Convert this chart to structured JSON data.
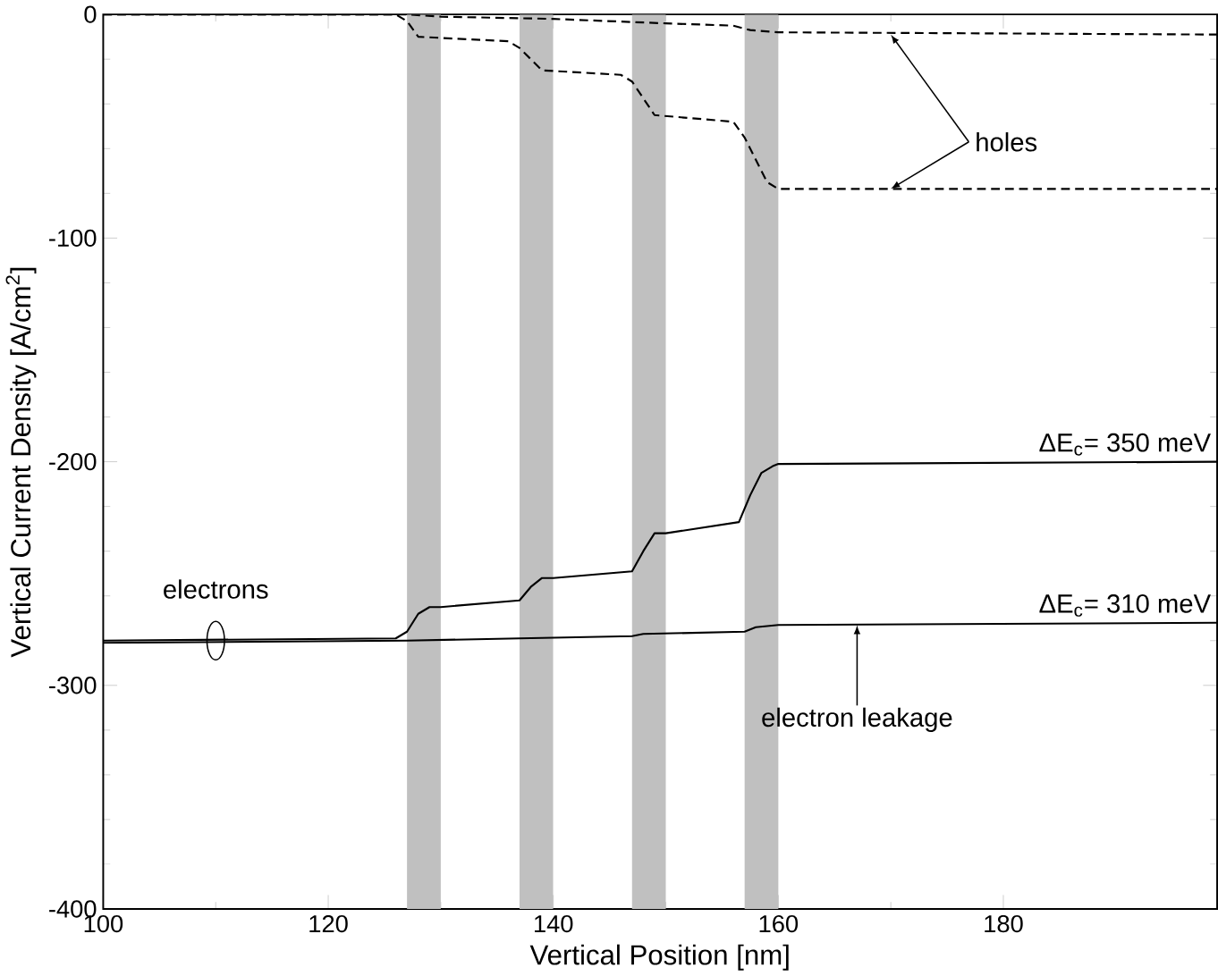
{
  "chart_data": {
    "type": "line",
    "xlabel": "Vertical Position [nm]",
    "ylabel": "Vertical Current Density [A/cm$^{2}$]",
    "xlim": [
      100,
      199
    ],
    "ylim": [
      -400,
      0
    ],
    "xticks": [
      100,
      120,
      140,
      160,
      180
    ],
    "yticks": [
      -400,
      -300,
      -200,
      -100,
      0
    ],
    "grid": false,
    "marker": "none",
    "bands": [
      {
        "axis": "x",
        "from": 127,
        "to": 130,
        "color": "#c0c0c0"
      },
      {
        "axis": "x",
        "from": 137,
        "to": 140,
        "color": "#c0c0c0"
      },
      {
        "axis": "x",
        "from": 147,
        "to": 150,
        "color": "#c0c0c0"
      },
      {
        "axis": "x",
        "from": 157,
        "to": 160,
        "color": "#c0c0c0"
      }
    ],
    "series": [
      {
        "name": "ΔE$_{c}$= 350 meV",
        "color": "#000000",
        "line_style": "solid",
        "x": [
          100,
          126,
          127,
          128,
          129,
          130,
          137,
          138,
          139,
          140,
          147,
          148,
          149,
          150,
          156.5,
          157.5,
          158.5,
          159.5,
          160,
          199
        ],
        "values": [
          -280,
          -279,
          -276,
          -268,
          -265,
          -265,
          -262,
          -256,
          -252,
          -252,
          -249,
          -240,
          -232,
          -232,
          -227,
          -215,
          -205,
          -202,
          -201,
          -200
        ]
      },
      {
        "name": "ΔE$_{c}$= 310 meV",
        "color": "#000000",
        "line_style": "solid",
        "x": [
          100,
          127,
          137,
          147,
          148,
          157,
          158,
          160,
          199
        ],
        "values": [
          -281,
          -280,
          -279,
          -278,
          -277,
          -276,
          -274,
          -273,
          -272
        ]
      },
      {
        "color": "#000000",
        "line_style": "dashed",
        "x": [
          100,
          127,
          130,
          140,
          150,
          156,
          157.5,
          160,
          199
        ],
        "values": [
          0,
          0,
          -1,
          -2,
          -4,
          -5,
          -7,
          -8,
          -9
        ]
      },
      {
        "color": "#000000",
        "line_style": "dashed",
        "x": [
          100,
          126,
          127,
          128,
          136,
          137,
          139,
          146,
          147,
          149,
          156,
          157,
          159,
          160,
          199
        ],
        "values": [
          0,
          0,
          -3,
          -10,
          -12,
          -15,
          -25,
          -27,
          -30,
          -45,
          -48,
          -55,
          -75,
          -78,
          -78
        ]
      }
    ],
    "annotations": [
      {
        "text": "holes",
        "x": 170,
        "y": -9
      },
      {
        "text": "electrons",
        "x": 110,
        "y": -280
      },
      {
        "text": "electron leakage",
        "x": 167,
        "y": -273
      }
    ]
  }
}
